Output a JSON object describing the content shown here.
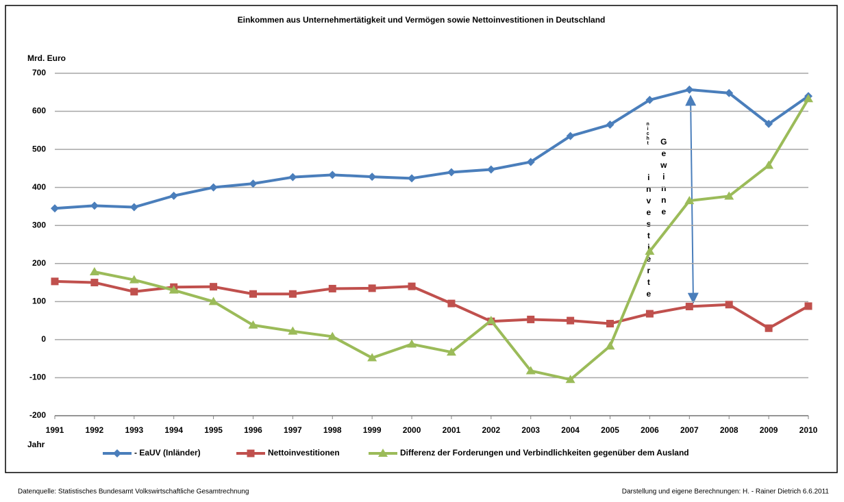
{
  "chart_data": {
    "type": "line",
    "title": "Einkommen aus Unternehmertätigkeit und Vermögen sowie Nettoinvestitionen in Deutschland",
    "y_label": "Mrd. Euro",
    "x_label": "Jahr",
    "categories": [
      "1991",
      "1992",
      "1993",
      "1994",
      "1995",
      "1996",
      "1997",
      "1998",
      "1999",
      "2000",
      "2001",
      "2002",
      "2003",
      "2004",
      "2005",
      "2006",
      "2007",
      "2008",
      "2009",
      "2010"
    ],
    "series": [
      {
        "name": "- EaUV (Inländer)",
        "color": "#4a7ebb",
        "marker": "diamond",
        "values": [
          345,
          352,
          348,
          378,
          400,
          410,
          427,
          433,
          428,
          424,
          440,
          447,
          467,
          535,
          565,
          630,
          657,
          648,
          567,
          640
        ]
      },
      {
        "name": "Nettoinvestitionen",
        "color": "#c0504d",
        "marker": "square",
        "values": [
          153,
          150,
          126,
          138,
          139,
          120,
          120,
          134,
          135,
          140,
          95,
          48,
          53,
          50,
          42,
          68,
          87,
          92,
          30,
          88
        ]
      },
      {
        "name": "Differenz der Forderungen und Verbindlichkeiten gegenüber dem Ausland",
        "color": "#9bbb59",
        "marker": "triangle",
        "values": [
          null,
          178,
          157,
          130,
          100,
          38,
          22,
          8,
          -48,
          -12,
          -33,
          50,
          -82,
          -105,
          -17,
          232,
          365,
          377,
          458,
          633
        ]
      }
    ],
    "ylim": [
      -200,
      700
    ],
    "yticks": [
      -200,
      -100,
      0,
      100,
      200,
      300,
      400,
      500,
      600,
      700
    ],
    "grid": true,
    "annotations": [
      "nicht",
      "investierte",
      "Gewinne"
    ],
    "source": "Datenquelle: Statistisches Bundesamt Volkswirtschaftliche Gesamtrechnung",
    "credit": "Darstellung und eigene Berechnungen: H. - Rainer Dietrich 6.6.2011"
  }
}
